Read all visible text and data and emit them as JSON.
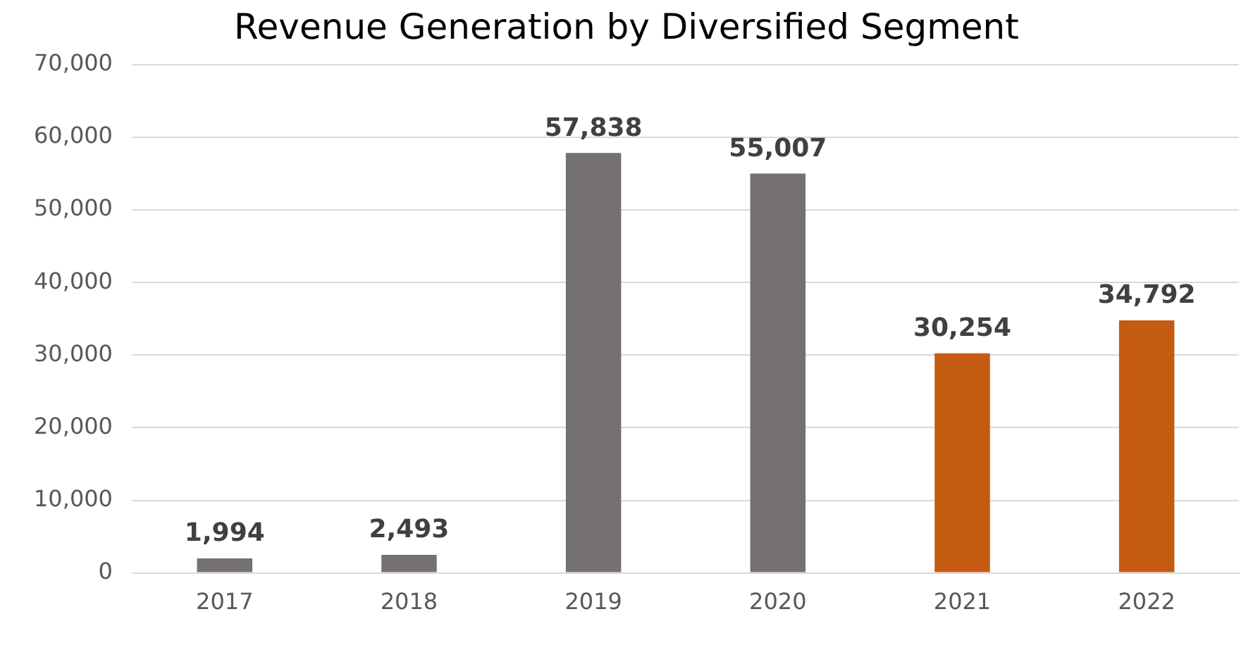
{
  "chart_data": {
    "type": "bar",
    "title": "Revenue Generation by Diversified Segment",
    "categories": [
      "2017",
      "2018",
      "2019",
      "2020",
      "2021",
      "2022"
    ],
    "values": [
      1994,
      2493,
      57838,
      55007,
      30254,
      34792
    ],
    "colors": [
      "#767171",
      "#767171",
      "#767171",
      "#767171",
      "#c55a11",
      "#c55a11"
    ],
    "value_labels": [
      "1,994",
      "2,493",
      "57,838",
      "55,007",
      "30,254",
      "34,792"
    ],
    "ylim": [
      0,
      70000
    ],
    "yticks": [
      0,
      {
        "value": 10000,
        "label": "10,000"
      },
      {
        "value": 20000,
        "label": "20,000"
      },
      {
        "value": 30000,
        "label": "30,000"
      },
      {
        "value": 40000,
        "label": "40,000"
      },
      {
        "value": 50000,
        "label": "50,000"
      },
      {
        "value": 60000,
        "label": "60,000"
      },
      {
        "value": 70000,
        "label": "70,000"
      }
    ],
    "grid": "y",
    "legend": false
  }
}
